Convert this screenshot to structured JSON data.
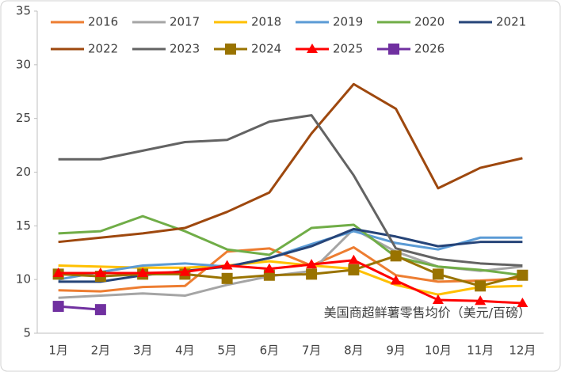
{
  "chart_data": {
    "type": "line",
    "annotation": "美国商超鲜薯零售均价（美元/百磅）",
    "categories": [
      "1月",
      "2月",
      "3月",
      "4月",
      "5月",
      "6月",
      "7月",
      "8月",
      "9月",
      "10月",
      "11月",
      "12月"
    ],
    "ylim": [
      5,
      35
    ],
    "yticks": [
      5,
      10,
      15,
      20,
      25,
      30,
      35
    ],
    "series": [
      {
        "name": "2016",
        "color": "#ED7D31",
        "values": [
          9.0,
          8.9,
          9.3,
          9.4,
          12.6,
          12.9,
          11.3,
          13.0,
          10.4,
          9.8,
          9.9,
          10.1
        ]
      },
      {
        "name": "2017",
        "color": "#A5A5A5",
        "values": [
          8.3,
          8.5,
          8.7,
          8.5,
          9.5,
          10.3,
          10.8,
          14.7,
          12.6,
          11.2,
          10.8,
          11.2
        ]
      },
      {
        "name": "2018",
        "color": "#FFC000",
        "values": [
          11.3,
          11.2,
          11.1,
          11.1,
          11.3,
          11.7,
          11.3,
          11.0,
          9.5,
          8.6,
          9.3,
          9.4
        ]
      },
      {
        "name": "2019",
        "color": "#5B9BD5",
        "values": [
          10.0,
          10.7,
          11.3,
          11.5,
          11.2,
          12.0,
          13.3,
          14.5,
          13.4,
          12.8,
          13.9,
          13.9
        ]
      },
      {
        "name": "2020",
        "color": "#70AD47",
        "values": [
          14.3,
          14.5,
          15.9,
          14.5,
          12.8,
          12.3,
          14.8,
          15.1,
          12.1,
          11.2,
          10.9,
          10.4
        ]
      },
      {
        "name": "2021",
        "color": "#264478",
        "values": [
          9.8,
          9.8,
          10.4,
          10.8,
          11.2,
          12.0,
          13.1,
          14.7,
          14.0,
          13.1,
          13.5,
          13.5
        ]
      },
      {
        "name": "2022",
        "color": "#9E480E",
        "values": [
          13.5,
          13.9,
          14.3,
          14.8,
          16.3,
          18.1,
          23.6,
          28.2,
          25.9,
          18.5,
          20.4,
          21.3
        ]
      },
      {
        "name": "2023",
        "color": "#636363",
        "values": [
          21.2,
          21.2,
          22.0,
          22.8,
          23.0,
          24.7,
          25.3,
          19.7,
          12.9,
          11.9,
          11.5,
          11.3
        ]
      },
      {
        "name": "2024",
        "color": "#997300",
        "marker": "square",
        "values": [
          10.5,
          10.3,
          10.5,
          10.5,
          10.1,
          10.4,
          10.5,
          10.9,
          12.2,
          10.5,
          9.4,
          10.4
        ]
      },
      {
        "name": "2025",
        "color": "#FF0000",
        "marker": "triangle",
        "values": [
          10.6,
          10.6,
          10.6,
          10.7,
          11.3,
          11.0,
          11.4,
          11.8,
          9.9,
          8.1,
          8.0,
          7.8
        ]
      },
      {
        "name": "2026",
        "color": "#7030A0",
        "marker": "square",
        "values": [
          7.5,
          7.2,
          null,
          null,
          null,
          null,
          null,
          null,
          null,
          null,
          null,
          null
        ]
      }
    ]
  }
}
